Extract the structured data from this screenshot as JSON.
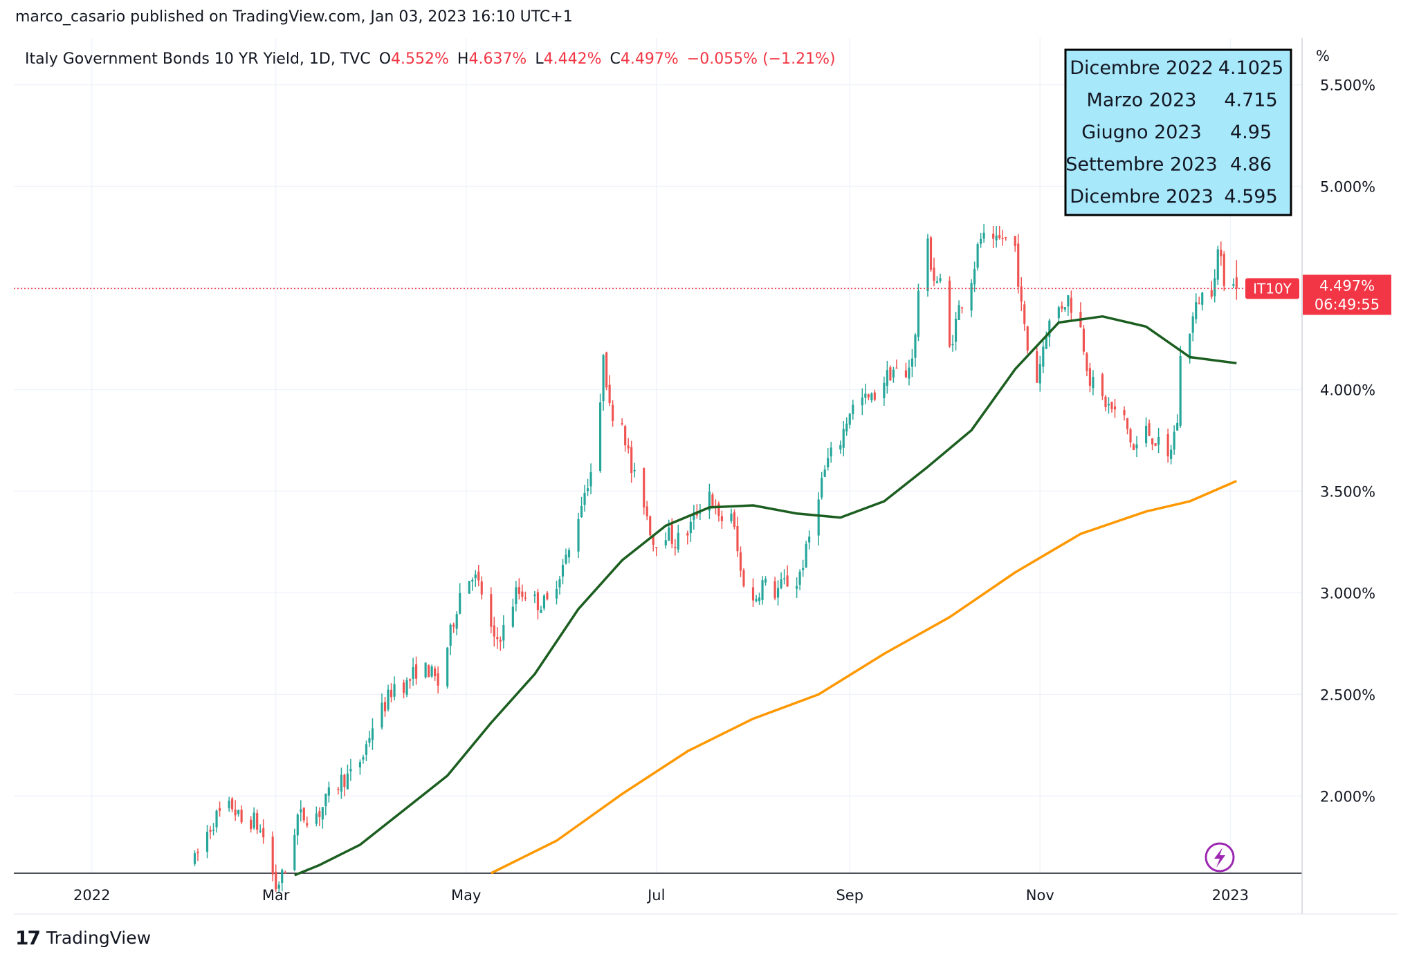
{
  "header": {
    "publisher": "marco_casario published on TradingView.com, Jan 03, 2023 16:10 UTC+1"
  },
  "legend": {
    "symbol": "Italy Government Bonds 10 YR Yield, 1D, TVC",
    "open_label": "O",
    "open": "4.552%",
    "high_label": "H",
    "high": "4.637%",
    "low_label": "L",
    "low": "4.442%",
    "close_label": "C",
    "close": "4.497%",
    "change": "−0.055% (−1.21%)"
  },
  "price_scale": {
    "unit": "%",
    "ticks": [
      "5.500%",
      "5.000%",
      "4.500%",
      "4.000%",
      "3.500%",
      "3.000%",
      "2.500%",
      "2.000%"
    ]
  },
  "time_scale": {
    "ticks": [
      "2022",
      "Mar",
      "May",
      "Jul",
      "Sep",
      "Nov",
      "2023"
    ]
  },
  "last_price": {
    "symbol_tag": "IT10Y",
    "price": "4.497%",
    "countdown": "06:49:55"
  },
  "forecast_table": {
    "rows": [
      {
        "period": "Dicembre 2022",
        "value": "4.1025"
      },
      {
        "period": "Marzo 2023",
        "value": "4.715"
      },
      {
        "period": "Giugno 2023",
        "value": "4.95"
      },
      {
        "period": "Settembre 2023",
        "value": "4.86"
      },
      {
        "period": "Dicembre 2023",
        "value": "4.595"
      }
    ]
  },
  "footer": {
    "brand": "TradingView",
    "logo_icon": "tradingview-logo-icon"
  },
  "colors": {
    "up": "#26a69a",
    "down": "#ef5350",
    "ma_short": "#1b5e20",
    "ma_long": "#ff9800",
    "price_tag": "#f23645",
    "forecast_bg": "#a8e8fb",
    "grid": "#f0f3fa"
  },
  "chart_data": {
    "type": "candlestick",
    "title": "Italy Government Bonds 10 YR Yield, 1D, TVC",
    "ylabel": "%",
    "ylim": [
      1.62,
      5.73
    ],
    "xlim": [
      "2021-12-07",
      "2023-01-24"
    ],
    "grid": true,
    "anchors": [
      [
        "2022-02-03",
        1.68
      ],
      [
        "2022-02-07",
        1.82
      ],
      [
        "2022-02-10",
        1.9
      ],
      [
        "2022-02-15",
        1.95
      ],
      [
        "2022-02-18",
        1.87
      ],
      [
        "2022-02-22",
        1.88
      ],
      [
        "2022-02-25",
        1.8
      ],
      [
        "2022-03-01",
        1.55
      ],
      [
        "2022-03-04",
        1.63
      ],
      [
        "2022-03-08",
        1.9
      ],
      [
        "2022-03-11",
        1.9
      ],
      [
        "2022-03-15",
        1.92
      ],
      [
        "2022-03-18",
        2.0
      ],
      [
        "2022-03-22",
        2.08
      ],
      [
        "2022-03-25",
        2.1
      ],
      [
        "2022-03-29",
        2.2
      ],
      [
        "2022-04-01",
        2.35
      ],
      [
        "2022-04-05",
        2.45
      ],
      [
        "2022-04-08",
        2.55
      ],
      [
        "2022-04-12",
        2.55
      ],
      [
        "2022-04-15",
        2.62
      ],
      [
        "2022-04-19",
        2.62
      ],
      [
        "2022-04-22",
        2.55
      ],
      [
        "2022-04-26",
        2.8
      ],
      [
        "2022-04-29",
        3.0
      ],
      [
        "2022-05-03",
        3.1
      ],
      [
        "2022-05-06",
        3.0
      ],
      [
        "2022-05-10",
        2.75
      ],
      [
        "2022-05-13",
        2.82
      ],
      [
        "2022-05-17",
        3.0
      ],
      [
        "2022-05-20",
        3.0
      ],
      [
        "2022-05-24",
        2.95
      ],
      [
        "2022-05-27",
        2.95
      ],
      [
        "2022-05-31",
        3.1
      ],
      [
        "2022-06-03",
        3.2
      ],
      [
        "2022-06-07",
        3.45
      ],
      [
        "2022-06-10",
        3.6
      ],
      [
        "2022-06-13",
        3.9
      ],
      [
        "2022-06-14",
        4.2
      ],
      [
        "2022-06-16",
        3.9
      ],
      [
        "2022-06-20",
        3.85
      ],
      [
        "2022-06-23",
        3.6
      ],
      [
        "2022-06-27",
        3.45
      ],
      [
        "2022-06-30",
        3.25
      ],
      [
        "2022-07-04",
        3.3
      ],
      [
        "2022-07-07",
        3.25
      ],
      [
        "2022-07-11",
        3.3
      ],
      [
        "2022-07-14",
        3.4
      ],
      [
        "2022-07-18",
        3.5
      ],
      [
        "2022-07-21",
        3.35
      ],
      [
        "2022-07-25",
        3.4
      ],
      [
        "2022-07-28",
        3.1
      ],
      [
        "2022-08-01",
        2.95
      ],
      [
        "2022-08-04",
        3.05
      ],
      [
        "2022-08-08",
        3.0
      ],
      [
        "2022-08-11",
        3.05
      ],
      [
        "2022-08-15",
        3.05
      ],
      [
        "2022-08-18",
        3.2
      ],
      [
        "2022-08-22",
        3.5
      ],
      [
        "2022-08-25",
        3.65
      ],
      [
        "2022-08-29",
        3.75
      ],
      [
        "2022-09-01",
        3.9
      ],
      [
        "2022-09-05",
        3.95
      ],
      [
        "2022-09-08",
        3.95
      ],
      [
        "2022-09-12",
        4.05
      ],
      [
        "2022-09-15",
        4.1
      ],
      [
        "2022-09-19",
        4.05
      ],
      [
        "2022-09-22",
        4.25
      ],
      [
        "2022-09-23",
        4.5
      ],
      [
        "2022-09-26",
        4.7
      ],
      [
        "2022-09-28",
        4.55
      ],
      [
        "2022-09-30",
        4.52
      ],
      [
        "2022-10-03",
        4.2
      ],
      [
        "2022-10-06",
        4.4
      ],
      [
        "2022-10-10",
        4.55
      ],
      [
        "2022-10-13",
        4.75
      ],
      [
        "2022-10-17",
        4.7
      ],
      [
        "2022-10-20",
        4.75
      ],
      [
        "2022-10-24",
        4.7
      ],
      [
        "2022-10-26",
        4.4
      ],
      [
        "2022-10-28",
        4.2
      ],
      [
        "2022-10-31",
        4.05
      ],
      [
        "2022-11-03",
        4.3
      ],
      [
        "2022-11-07",
        4.4
      ],
      [
        "2022-11-10",
        4.45
      ],
      [
        "2022-11-14",
        4.3
      ],
      [
        "2022-11-17",
        4.05
      ],
      [
        "2022-11-21",
        3.95
      ],
      [
        "2022-11-24",
        3.9
      ],
      [
        "2022-11-28",
        3.85
      ],
      [
        "2022-12-01",
        3.7
      ],
      [
        "2022-12-05",
        3.8
      ],
      [
        "2022-12-08",
        3.75
      ],
      [
        "2022-12-12",
        3.65
      ],
      [
        "2022-12-15",
        3.85
      ],
      [
        "2022-12-16",
        4.15
      ],
      [
        "2022-12-19",
        4.3
      ],
      [
        "2022-12-22",
        4.45
      ],
      [
        "2022-12-26",
        4.5
      ],
      [
        "2022-12-28",
        4.68
      ],
      [
        "2022-12-30",
        4.55
      ],
      [
        "2023-01-02",
        4.552
      ],
      [
        "2023-01-03",
        4.497
      ]
    ],
    "series": [
      {
        "type": "line",
        "color": "#1b5e20",
        "points": [
          [
            "2022-03-07",
            1.61
          ],
          [
            "2022-03-15",
            1.66
          ],
          [
            "2022-03-28",
            1.76
          ],
          [
            "2022-04-11",
            1.93
          ],
          [
            "2022-04-25",
            2.1
          ],
          [
            "2022-05-09",
            2.36
          ],
          [
            "2022-05-23",
            2.6
          ],
          [
            "2022-06-06",
            2.92
          ],
          [
            "2022-06-20",
            3.16
          ],
          [
            "2022-07-04",
            3.33
          ],
          [
            "2022-07-18",
            3.42
          ],
          [
            "2022-08-01",
            3.43
          ],
          [
            "2022-08-15",
            3.39
          ],
          [
            "2022-08-29",
            3.37
          ],
          [
            "2022-09-12",
            3.45
          ],
          [
            "2022-09-26",
            3.62
          ],
          [
            "2022-10-10",
            3.8
          ],
          [
            "2022-10-24",
            4.1
          ],
          [
            "2022-11-07",
            4.33
          ],
          [
            "2022-11-21",
            4.36
          ],
          [
            "2022-12-05",
            4.31
          ],
          [
            "2022-12-19",
            4.16
          ],
          [
            "2023-01-03",
            4.13
          ]
        ]
      },
      {
        "type": "line",
        "color": "#ff9800",
        "points": [
          [
            "2022-05-09",
            1.62
          ],
          [
            "2022-05-30",
            1.78
          ],
          [
            "2022-06-20",
            2.01
          ],
          [
            "2022-07-11",
            2.22
          ],
          [
            "2022-08-01",
            2.38
          ],
          [
            "2022-08-22",
            2.5
          ],
          [
            "2022-09-12",
            2.7
          ],
          [
            "2022-10-03",
            2.88
          ],
          [
            "2022-10-24",
            3.1
          ],
          [
            "2022-11-14",
            3.29
          ],
          [
            "2022-12-05",
            3.4
          ],
          [
            "2022-12-19",
            3.45
          ],
          [
            "2023-01-03",
            3.55
          ]
        ]
      }
    ]
  }
}
